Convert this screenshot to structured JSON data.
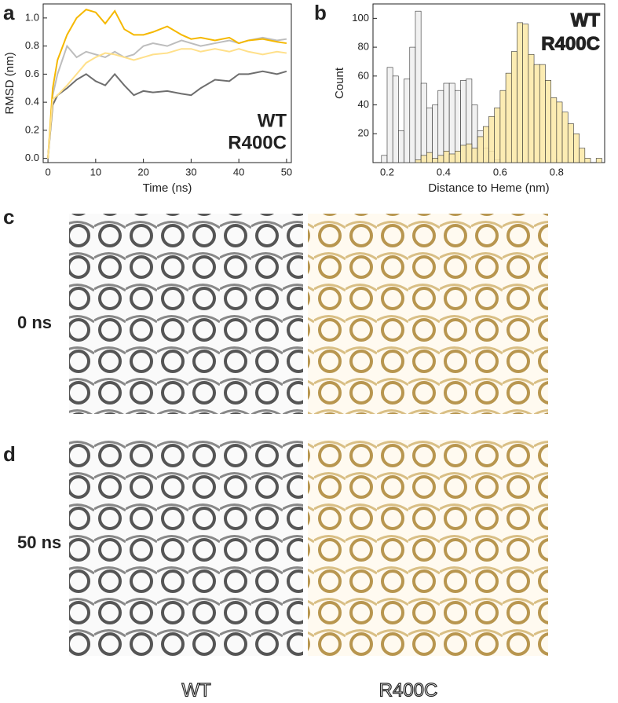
{
  "panel_labels": [
    "a",
    "b",
    "c",
    "d"
  ],
  "chart_data": [
    {
      "type": "line",
      "xlabel": "Time (ns)",
      "ylabel": "RMSD (nm)",
      "x": [
        0,
        1,
        2,
        4,
        6,
        8,
        10,
        12,
        14,
        16,
        18,
        20,
        22,
        25,
        28,
        30,
        32,
        35,
        38,
        40,
        42,
        45,
        48,
        50
      ],
      "series": [
        {
          "name": "WT",
          "color": "#bdbdbd",
          "values": [
            0,
            0.45,
            0.6,
            0.8,
            0.72,
            0.76,
            0.74,
            0.72,
            0.76,
            0.72,
            0.74,
            0.8,
            0.82,
            0.8,
            0.84,
            0.82,
            0.8,
            0.82,
            0.84,
            0.82,
            0.84,
            0.86,
            0.84,
            0.85
          ]
        },
        {
          "name": "R400C",
          "color": "#f5b800",
          "values": [
            0,
            0.5,
            0.7,
            0.88,
            1.0,
            1.06,
            1.04,
            0.96,
            1.05,
            0.92,
            0.88,
            0.88,
            0.9,
            0.94,
            0.88,
            0.85,
            0.86,
            0.84,
            0.86,
            0.82,
            0.84,
            0.85,
            0.83,
            0.82
          ]
        },
        {
          "color": "#6e6e6e",
          "values": [
            0,
            0.38,
            0.45,
            0.5,
            0.56,
            0.6,
            0.55,
            0.52,
            0.6,
            0.52,
            0.45,
            0.48,
            0.47,
            0.48,
            0.46,
            0.45,
            0.5,
            0.56,
            0.55,
            0.6,
            0.6,
            0.62,
            0.6,
            0.62
          ]
        },
        {
          "color": "#ffe08a",
          "values": [
            0,
            0.42,
            0.45,
            0.52,
            0.6,
            0.68,
            0.72,
            0.75,
            0.74,
            0.72,
            0.7,
            0.72,
            0.74,
            0.75,
            0.78,
            0.78,
            0.76,
            0.78,
            0.76,
            0.78,
            0.76,
            0.74,
            0.76,
            0.75
          ]
        }
      ],
      "xlim": [
        -1,
        51
      ],
      "ylim": [
        -0.03,
        1.1
      ],
      "xticks": [
        0,
        10,
        20,
        30,
        40,
        50
      ],
      "yticks": [
        {
          "value": 0,
          "label": "0.0"
        },
        0.2,
        0.4,
        0.6,
        0.8,
        {
          "value": 1,
          "label": "1.0"
        }
      ]
    },
    {
      "type": "histogram",
      "xlabel": "Distance to Heme (nm)",
      "ylabel": "Count",
      "bins": [
        0.18,
        0.2,
        0.22,
        0.24,
        0.26,
        0.28,
        0.3,
        0.32,
        0.34,
        0.36,
        0.38,
        0.4,
        0.42,
        0.44,
        0.46,
        0.48,
        0.5,
        0.52,
        0.54,
        0.56,
        0.58,
        0.6,
        0.62,
        0.64,
        0.66,
        0.68,
        0.7,
        0.72,
        0.74,
        0.76,
        0.78,
        0.8,
        0.82,
        0.84,
        0.86,
        0.88,
        0.9,
        0.92,
        0.94,
        0.96
      ],
      "series": [
        {
          "name": "WT",
          "color": "#eeeeee",
          "values": [
            5,
            66,
            60,
            22,
            58,
            80,
            105,
            55,
            38,
            40,
            50,
            55,
            55,
            50,
            57,
            58,
            40,
            22,
            10,
            8,
            2,
            0,
            0,
            0,
            0,
            0,
            0,
            0,
            0,
            0,
            0,
            0,
            0,
            0,
            0,
            0,
            0,
            0,
            0
          ]
        },
        {
          "name": "R400C",
          "color": "#fbe9a6",
          "values": [
            0,
            0,
            0,
            0,
            0,
            0,
            2,
            5,
            7,
            3,
            5,
            8,
            6,
            8,
            12,
            13,
            10,
            18,
            25,
            32,
            38,
            50,
            62,
            77,
            97,
            96,
            75,
            68,
            68,
            57,
            45,
            42,
            35,
            27,
            20,
            10,
            3,
            0,
            3
          ]
        }
      ],
      "xlim": [
        0.15,
        0.97
      ],
      "ylim": [
        0,
        110
      ],
      "xticks": [
        0.2,
        0.4,
        0.6,
        0.8
      ],
      "yticks": [
        20,
        40,
        60,
        80,
        100
      ]
    }
  ],
  "structures": {
    "rows": [
      "0 ns",
      "50 ns"
    ],
    "columns": [
      "WT",
      "R400C"
    ]
  }
}
